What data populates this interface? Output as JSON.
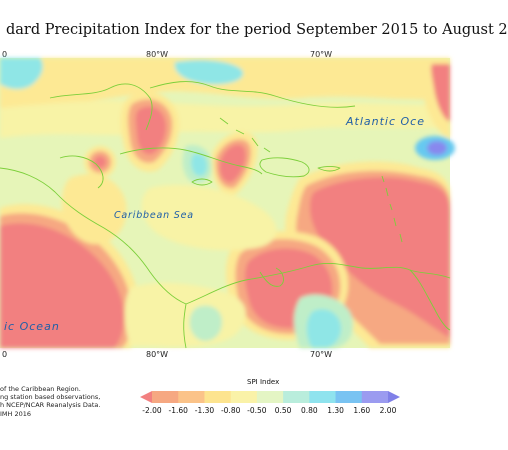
{
  "title": "dard Precipitation Index for the period September 2015 to August 2",
  "map": {
    "lon_labels_top": [
      "80°W",
      "70°W"
    ],
    "lon_labels_bottom": [
      "80°W",
      "70°W"
    ],
    "lon_labels_left_cut": [
      "0",
      "0"
    ],
    "place_labels": {
      "atlantic": "Atlantic Oce",
      "caribbean": "Caribbean Sea",
      "pacific": "ic Ocean"
    },
    "colors": {
      "dry_extreme": "#f28080",
      "dry_severe": "#f6a882",
      "dry_moderate": "#fbd08a",
      "dry_mild": "#fde994",
      "near_dry": "#f8f3a6",
      "near_normal": "#e6f5b8",
      "wet_mild": "#bfeec8",
      "wet_moderate": "#8fe6e6",
      "wet_severe": "#66c9f0",
      "wet_extreme": "#8888ee",
      "coast": "#7ccf3a"
    }
  },
  "credits": [
    "of the Caribbean Region.",
    "ng station based observations,",
    "h NCEP/NCAR Reanalysis Data.",
    "IMH 2016"
  ],
  "legend": {
    "title": "SPI Index",
    "ticks": [
      "-2.00",
      "-1.60",
      "-1.30",
      "-0.80",
      "-0.50",
      "0.50",
      "0.80",
      "1.30",
      "1.60",
      "2.00"
    ],
    "colors": [
      "#f28080",
      "#f6a882",
      "#fbc389",
      "#fde48f",
      "#faf2a8",
      "#e4f5c4",
      "#b9eddc",
      "#8fe3ee",
      "#79c3f2",
      "#9b9bf0",
      "#8080e8"
    ]
  }
}
